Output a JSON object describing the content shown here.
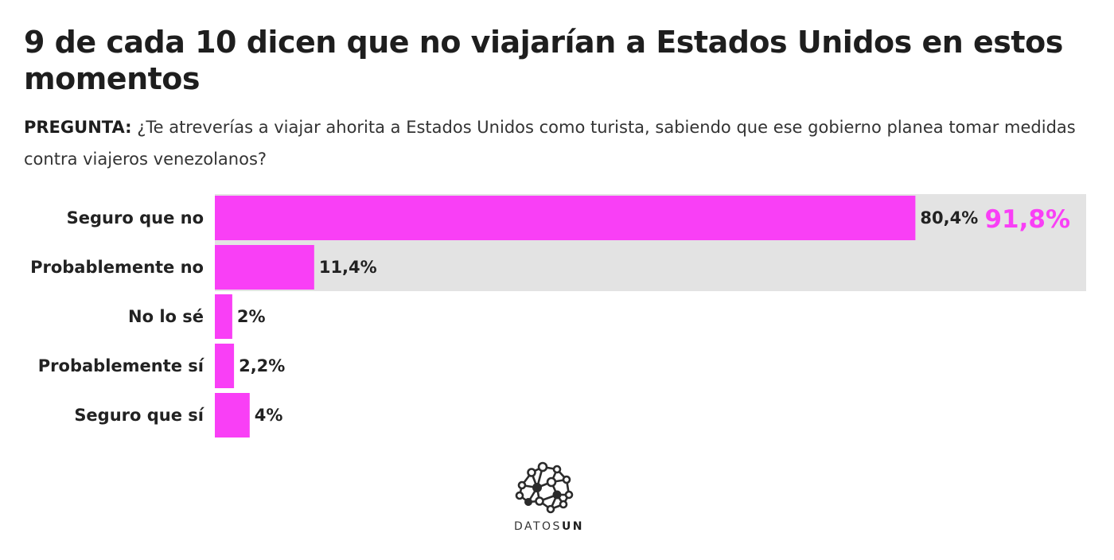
{
  "title": "9 de cada 10 dicen que no viajarían a Estados Unidos en estos momentos",
  "question": {
    "label": "PREGUNTA:",
    "text": "¿Te atreverías a viajar ahorita a Estados Unidos como turista, sabiendo que ese gobierno planea tomar medidas contra viajeros venezolanos?"
  },
  "colors": {
    "bar": "#f93ff6",
    "highlight_band": "#e3e3e3",
    "highlight_total": "#f93ff6",
    "label": "#222222"
  },
  "chart_data": {
    "type": "bar",
    "orientation": "horizontal",
    "categories": [
      "Seguro que no",
      "Probablemente no",
      "No lo sé",
      "Probablemente sí",
      "Seguro que sí"
    ],
    "values": [
      80.4,
      11.4,
      2,
      2.2,
      4
    ],
    "value_labels": [
      "80,4%",
      "11,4%",
      "2%",
      "2,2%",
      "4%"
    ],
    "xlim": [
      0,
      100
    ],
    "grid": false,
    "highlight": {
      "categories": [
        "Seguro que no",
        "Probablemente no"
      ],
      "total_label": "91,8%"
    }
  },
  "logo": {
    "icon": "network-brain-icon",
    "text_light": "DATOS",
    "text_bold": "UN"
  }
}
